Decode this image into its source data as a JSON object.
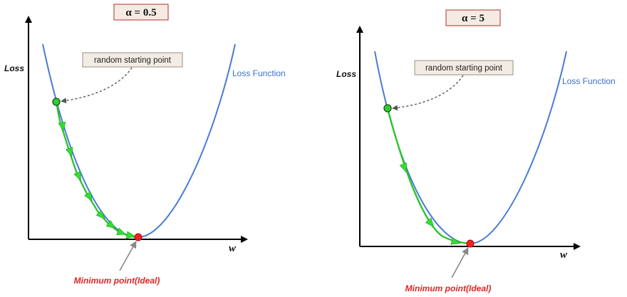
{
  "panels": [
    {
      "alpha_label": "α = 0.5",
      "y_axis_label": "Loss",
      "x_axis_label": "w",
      "curve_label": "Loss Function",
      "start_note": "random starting point",
      "minimum_label": "Minimum point(Ideal)",
      "descent_steps": 9
    },
    {
      "alpha_label": "α = 5",
      "y_axis_label": "Loss",
      "x_axis_label": "w",
      "curve_label": "Loss Function",
      "start_note": "random starting point",
      "minimum_label": "Minimum point(Ideal)",
      "descent_steps": 3
    }
  ],
  "colors": {
    "loss_curve": "#4a7bd6",
    "descent_path": "#2ec42e",
    "start_point": "#33cc33",
    "minimum_point": "#ee2222",
    "minimum_label": "#e02424"
  }
}
